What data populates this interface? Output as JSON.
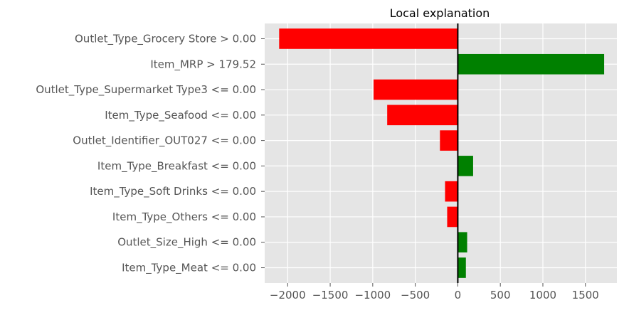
{
  "chart_data": {
    "type": "bar",
    "orientation": "horizontal",
    "title": "Local explanation",
    "xlabel": "",
    "ylabel": "",
    "xlim": [
      -2270,
      1870
    ],
    "xticks": [
      -2000,
      -1500,
      -1000,
      -500,
      0,
      500,
      1000,
      1500
    ],
    "xtick_labels": [
      "−2000",
      "−1500",
      "−1000",
      "−500",
      "0",
      "500",
      "1000",
      "1500"
    ],
    "grid": true,
    "categories": [
      "Outlet_Type_Grocery Store > 0.00",
      "Item_MRP > 179.52",
      "Outlet_Type_Supermarket Type3 <= 0.00",
      "Item_Type_Seafood <= 0.00",
      "Outlet_Identifier_OUT027 <= 0.00",
      "Item_Type_Breakfast <= 0.00",
      "Item_Type_Soft Drinks <= 0.00",
      "Item_Type_Others <= 0.00",
      "Outlet_Size_High <= 0.00",
      "Item_Type_Meat <= 0.00"
    ],
    "values": [
      -2100,
      1720,
      -990,
      -830,
      -210,
      180,
      -150,
      -125,
      110,
      95
    ],
    "colors": {
      "positive": "#008000",
      "negative": "#ff0000",
      "background": "#e5e5e5",
      "grid": "#ffffff",
      "zero_line": "#000000"
    }
  }
}
